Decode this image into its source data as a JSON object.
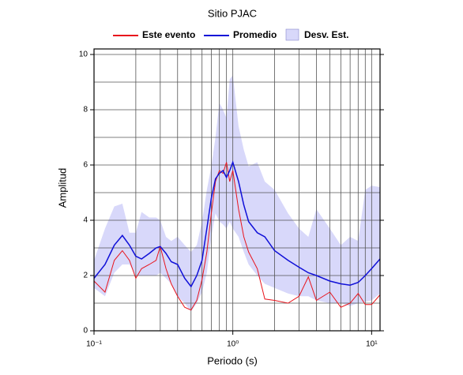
{
  "chart_data": {
    "type": "line",
    "title": "Sitio PJAC",
    "x_label": "Periodo (s)",
    "y_label": "Amplitud",
    "x": [
      0.1,
      0.12,
      0.14,
      0.16,
      0.18,
      0.2,
      0.22,
      0.25,
      0.28,
      0.3,
      0.33,
      0.36,
      0.4,
      0.45,
      0.5,
      0.55,
      0.6,
      0.65,
      0.7,
      0.75,
      0.8,
      0.85,
      0.9,
      0.95,
      1.0,
      1.1,
      1.2,
      1.3,
      1.5,
      1.7,
      2,
      2.5,
      3,
      3.5,
      4,
      5,
      6,
      7,
      8,
      9,
      10,
      11.5
    ],
    "series": [
      {
        "name": "Este evento",
        "color": "#e8141c",
        "values": [
          1.8,
          1.4,
          2.55,
          2.9,
          2.55,
          1.9,
          2.25,
          2.4,
          2.55,
          3.05,
          2.25,
          1.7,
          1.25,
          0.85,
          0.75,
          1.1,
          1.85,
          2.85,
          4.25,
          5.4,
          5.8,
          5.7,
          6.1,
          5.4,
          5.8,
          4.4,
          3.4,
          2.85,
          2.25,
          1.15,
          1.1,
          1.0,
          1.25,
          1.95,
          1.1,
          1.4,
          0.85,
          1.0,
          1.35,
          0.95,
          0.95,
          1.3
        ]
      },
      {
        "name": "Promedio",
        "color": "#1010d8",
        "values": [
          1.9,
          2.4,
          3.1,
          3.45,
          3.1,
          2.7,
          2.6,
          2.8,
          3.0,
          3.05,
          2.8,
          2.5,
          2.4,
          1.9,
          1.6,
          2.0,
          2.55,
          3.7,
          4.8,
          5.5,
          5.7,
          5.8,
          5.55,
          5.8,
          6.1,
          5.4,
          4.55,
          3.95,
          3.55,
          3.4,
          2.9,
          2.55,
          2.3,
          2.1,
          2.0,
          1.8,
          1.7,
          1.65,
          1.75,
          2.0,
          2.25,
          2.6
        ]
      },
      {
        "name": "Desv. Est.",
        "color": "#d8d8fa",
        "upper": [
          2.55,
          3.7,
          4.5,
          4.6,
          3.55,
          3.55,
          4.3,
          4.1,
          4.1,
          4.0,
          3.4,
          3.25,
          3.4,
          3.1,
          2.85,
          3.1,
          3.95,
          5.1,
          5.95,
          7.0,
          8.25,
          8.0,
          7.7,
          9.1,
          9.25,
          7.4,
          6.55,
          5.95,
          6.1,
          5.4,
          5.1,
          4.25,
          3.7,
          3.4,
          4.4,
          3.7,
          3.1,
          3.4,
          3.25,
          5.1,
          5.25,
          5.2
        ],
        "lower": [
          1.55,
          1.25,
          2.1,
          2.4,
          2.4,
          2.0,
          2.0,
          2.0,
          2.0,
          2.1,
          1.9,
          1.7,
          1.25,
          1.0,
          0.7,
          1.0,
          1.4,
          2.1,
          3.4,
          4.25,
          3.95,
          3.85,
          3.7,
          3.95,
          3.7,
          3.4,
          2.85,
          2.4,
          2.0,
          1.7,
          1.55,
          1.35,
          1.25,
          1.25,
          1.1,
          1.0,
          1.0,
          0.9,
          1.0,
          1.05,
          1.1,
          1.35
        ]
      }
    ],
    "x_log": true,
    "xlim": [
      0.1,
      11.5
    ],
    "xticks": [
      {
        "value": 0.1,
        "label": "10⁻¹"
      },
      {
        "value": 1,
        "label": "10⁰"
      },
      {
        "value": 10,
        "label": "10¹"
      }
    ],
    "x_minor_ticks": [
      0.2,
      0.3,
      0.4,
      0.5,
      0.6,
      0.7,
      0.8,
      0.9,
      2,
      3,
      4,
      5,
      6,
      7,
      8,
      9
    ],
    "ylim": [
      0,
      10.2
    ],
    "yticks": [
      0,
      2,
      4,
      6,
      8,
      10
    ],
    "y_minor_ticks": [
      1,
      3,
      5,
      7,
      9
    ],
    "grid": true
  }
}
